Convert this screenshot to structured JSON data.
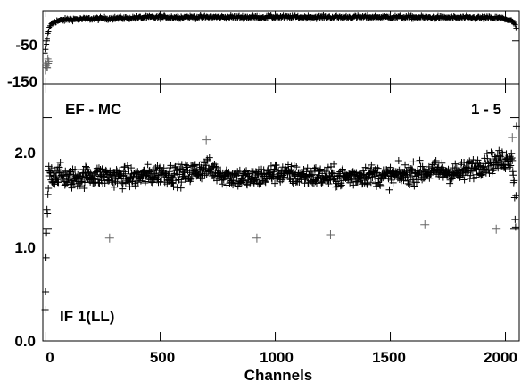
{
  "chart_data": [
    {
      "type": "scatter",
      "panel": "top",
      "ylabel": "",
      "y_tick_labels": [
        "-50",
        "-150"
      ],
      "y_tick_values": [
        -50,
        -150
      ],
      "ylim": [
        -150,
        20
      ],
      "xlim": [
        -10,
        2060
      ],
      "series": [
        {
          "marker": "+",
          "description_level": "phase near 0 across band, falling to about -80 at both band edges",
          "x": [
            0,
            5,
            10,
            20,
            40,
            100,
            500,
            1000,
            1500,
            1980,
            2020,
            2040,
            2048
          ],
          "y": [
            -80,
            -65,
            -40,
            -15,
            -5,
            0,
            5,
            5,
            5,
            3,
            -2,
            -10,
            -25
          ]
        }
      ]
    },
    {
      "type": "scatter",
      "panel": "bottom",
      "annotations": [
        "EF - MC",
        "1 - 5",
        "IF 1(LL)"
      ],
      "xlabel": "Channels",
      "x_tick_labels": [
        "0",
        "500",
        "1000",
        "1500",
        "2000"
      ],
      "x_tick_values": [
        0,
        500,
        1000,
        1500,
        2000
      ],
      "y_tick_labels": [
        "0.0",
        "1.0",
        "2.0"
      ],
      "y_tick_values": [
        0.0,
        1.0,
        2.0
      ],
      "ylim": [
        0.0,
        2.3
      ],
      "xlim": [
        -10,
        2060
      ],
      "series": [
        {
          "marker": "+",
          "x": [
            0,
            3,
            6,
            10,
            15,
            20,
            30,
            50,
            100,
            200,
            300,
            400,
            500,
            600,
            700,
            800,
            900,
            1000,
            1100,
            1200,
            1300,
            1400,
            1500,
            1600,
            1700,
            1800,
            1900,
            1950,
            2000,
            2030,
            2040,
            2045,
            2048
          ],
          "y": [
            0.25,
            0.6,
            0.9,
            1.2,
            1.4,
            1.5,
            1.48,
            1.5,
            1.45,
            1.48,
            1.47,
            1.46,
            1.5,
            1.48,
            1.55,
            1.47,
            1.45,
            1.5,
            1.48,
            1.47,
            1.46,
            1.49,
            1.47,
            1.5,
            1.52,
            1.5,
            1.58,
            1.6,
            1.62,
            1.65,
            1.3,
            0.9,
            2.0
          ]
        }
      ]
    }
  ]
}
